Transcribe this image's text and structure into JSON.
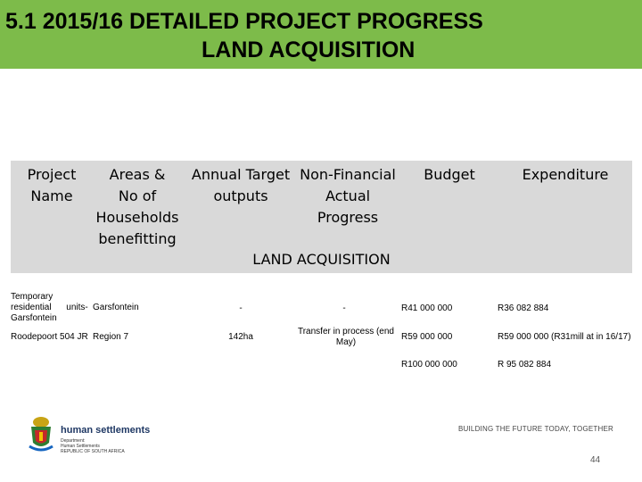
{
  "title": {
    "line1": "5.1 2015/16 DETAILED PROJECT PROGRESS",
    "line2": "LAND ACQUISITION"
  },
  "table": {
    "headers": {
      "project_name": [
        "Project",
        "Name"
      ],
      "areas": [
        "Areas &",
        "No of",
        "Households",
        "benefitting"
      ],
      "annual_target": [
        "Annual Target",
        "outputs"
      ],
      "non_financial": [
        "Non-Financial",
        "Actual",
        "Progress"
      ],
      "budget": [
        "Budget"
      ],
      "expenditure": [
        "Expenditure"
      ]
    },
    "section_label": "LAND ACQUISITION",
    "rows": [
      {
        "project_name": [
          "Temporary",
          "residential      units-",
          "Garsfontein"
        ],
        "areas": "Garsfontein",
        "annual_target": "-",
        "non_financial": [
          "-"
        ],
        "budget": "R41 000 000",
        "expenditure": "R36 082 884"
      },
      {
        "project_name": [
          "Roodepoort 504 JR"
        ],
        "areas": "Region 7",
        "annual_target": "142ha",
        "non_financial": [
          "Transfer in process (end",
          "May)"
        ],
        "budget": "R59 000 000",
        "expenditure": "R59 000 000 (R31mill at in 16/17)"
      },
      {
        "project_name": [
          ""
        ],
        "areas": "",
        "annual_target": "",
        "non_financial": [
          ""
        ],
        "budget": "R100 000 000",
        "expenditure": "R 95 082 884"
      }
    ]
  },
  "footer": {
    "department": "human settlements",
    "department_lines": [
      "Department:",
      "Human Settlements",
      "REPUBLIC OF SOUTH AFRICA"
    ],
    "tagline": "BUILDING THE FUTURE TODAY, TOGETHER",
    "page_number": "44"
  },
  "colors": {
    "title_bar": "#7dbb4a",
    "table_header": "#d9d9d9"
  }
}
